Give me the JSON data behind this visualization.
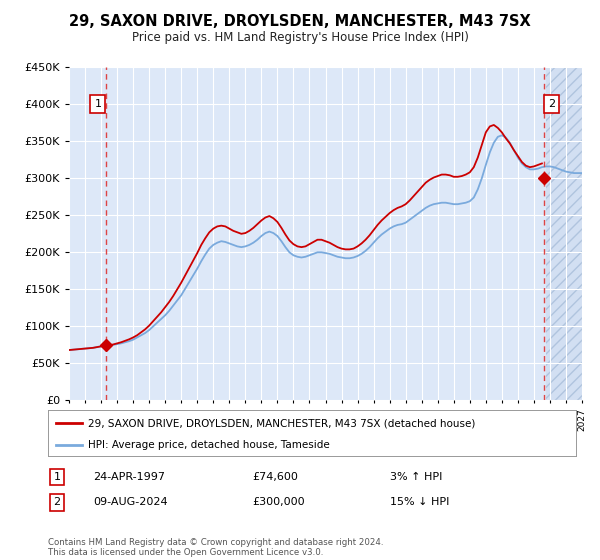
{
  "title": "29, SAXON DRIVE, DROYLSDEN, MANCHESTER, M43 7SX",
  "subtitle": "Price paid vs. HM Land Registry's House Price Index (HPI)",
  "legend_line1": "29, SAXON DRIVE, DROYLSDEN, MANCHESTER, M43 7SX (detached house)",
  "legend_line2": "HPI: Average price, detached house, Tameside",
  "annotation1_date": "24-APR-1997",
  "annotation1_price": "£74,600",
  "annotation1_hpi": "3% ↑ HPI",
  "annotation2_date": "09-AUG-2024",
  "annotation2_price": "£300,000",
  "annotation2_hpi": "15% ↓ HPI",
  "footer": "Contains HM Land Registry data © Crown copyright and database right 2024.\nThis data is licensed under the Open Government Licence v3.0.",
  "background_color": "#dde8f8",
  "hatch_color": "#c8d8ee",
  "sale_color": "#cc0000",
  "hpi_color": "#7aaadd",
  "vline_color": "#dd4444",
  "sale1_x": 1997.3,
  "sale1_y": 74600,
  "sale2_x": 2024.6,
  "sale2_y": 300000,
  "xlim": [
    1995,
    2027
  ],
  "ylim": [
    0,
    450000
  ],
  "yticks": [
    0,
    50000,
    100000,
    150000,
    200000,
    250000,
    300000,
    350000,
    400000,
    450000
  ],
  "hpi_x": [
    1995.0,
    1995.25,
    1995.5,
    1995.75,
    1996.0,
    1996.25,
    1996.5,
    1996.75,
    1997.0,
    1997.25,
    1997.5,
    1997.75,
    1998.0,
    1998.25,
    1998.5,
    1998.75,
    1999.0,
    1999.25,
    1999.5,
    1999.75,
    2000.0,
    2000.25,
    2000.5,
    2000.75,
    2001.0,
    2001.25,
    2001.5,
    2001.75,
    2002.0,
    2002.25,
    2002.5,
    2002.75,
    2003.0,
    2003.25,
    2003.5,
    2003.75,
    2004.0,
    2004.25,
    2004.5,
    2004.75,
    2005.0,
    2005.25,
    2005.5,
    2005.75,
    2006.0,
    2006.25,
    2006.5,
    2006.75,
    2007.0,
    2007.25,
    2007.5,
    2007.75,
    2008.0,
    2008.25,
    2008.5,
    2008.75,
    2009.0,
    2009.25,
    2009.5,
    2009.75,
    2010.0,
    2010.25,
    2010.5,
    2010.75,
    2011.0,
    2011.25,
    2011.5,
    2011.75,
    2012.0,
    2012.25,
    2012.5,
    2012.75,
    2013.0,
    2013.25,
    2013.5,
    2013.75,
    2014.0,
    2014.25,
    2014.5,
    2014.75,
    2015.0,
    2015.25,
    2015.5,
    2015.75,
    2016.0,
    2016.25,
    2016.5,
    2016.75,
    2017.0,
    2017.25,
    2017.5,
    2017.75,
    2018.0,
    2018.25,
    2018.5,
    2018.75,
    2019.0,
    2019.25,
    2019.5,
    2019.75,
    2020.0,
    2020.25,
    2020.5,
    2020.75,
    2021.0,
    2021.25,
    2021.5,
    2021.75,
    2022.0,
    2022.25,
    2022.5,
    2022.75,
    2023.0,
    2023.25,
    2023.5,
    2023.75,
    2024.0,
    2024.25,
    2024.5,
    2024.75,
    2025.0,
    2025.25,
    2025.5,
    2025.75,
    2026.0,
    2026.25,
    2026.5,
    2026.75,
    2027.0
  ],
  "hpi_y": [
    68000,
    68500,
    69000,
    69500,
    70000,
    70500,
    71000,
    72000,
    73000,
    73500,
    74000,
    75000,
    76000,
    77000,
    78500,
    80000,
    82000,
    85000,
    88000,
    91000,
    95000,
    100000,
    105000,
    110000,
    115000,
    121000,
    128000,
    135000,
    142000,
    151000,
    160000,
    169000,
    178000,
    188000,
    197000,
    205000,
    210000,
    213000,
    215000,
    214000,
    212000,
    210000,
    208000,
    207000,
    208000,
    210000,
    213000,
    217000,
    222000,
    226000,
    228000,
    226000,
    222000,
    215000,
    207000,
    200000,
    196000,
    194000,
    193000,
    194000,
    196000,
    198000,
    200000,
    200000,
    199000,
    198000,
    196000,
    194000,
    193000,
    192000,
    192000,
    193000,
    195000,
    198000,
    202000,
    207000,
    213000,
    219000,
    224000,
    228000,
    232000,
    235000,
    237000,
    238000,
    240000,
    244000,
    248000,
    252000,
    256000,
    260000,
    263000,
    265000,
    266000,
    267000,
    267000,
    266000,
    265000,
    265000,
    266000,
    267000,
    269000,
    274000,
    285000,
    300000,
    318000,
    335000,
    348000,
    356000,
    358000,
    355000,
    348000,
    338000,
    328000,
    320000,
    315000,
    312000,
    312000,
    313000,
    315000,
    316000,
    316000,
    315000,
    313000,
    311000,
    309000,
    308000,
    307000,
    307000,
    307000
  ],
  "sale_y": [
    68000,
    68500,
    69000,
    69500,
    70000,
    70500,
    71000,
    72000,
    73000,
    73500,
    74600,
    75500,
    77000,
    78500,
    80500,
    82500,
    85000,
    88000,
    92000,
    96000,
    101000,
    107000,
    113000,
    119000,
    126000,
    133000,
    141000,
    150000,
    159000,
    169000,
    179000,
    189000,
    199000,
    210000,
    219000,
    227000,
    232000,
    235000,
    236000,
    235000,
    232000,
    229000,
    227000,
    225000,
    226000,
    229000,
    233000,
    238000,
    243000,
    247000,
    249000,
    246000,
    241000,
    233000,
    224000,
    216000,
    211000,
    208000,
    207000,
    208000,
    211000,
    214000,
    217000,
    217000,
    215000,
    213000,
    210000,
    207000,
    205000,
    204000,
    204000,
    205000,
    208000,
    212000,
    217000,
    223000,
    230000,
    237000,
    243000,
    248000,
    253000,
    257000,
    260000,
    262000,
    265000,
    270000,
    276000,
    282000,
    288000,
    294000,
    298000,
    301000,
    303000,
    305000,
    305000,
    304000,
    302000,
    302000,
    303000,
    305000,
    308000,
    315000,
    328000,
    345000,
    362000,
    370000,
    372000,
    368000,
    362000,
    354000,
    347000,
    338000,
    330000,
    322000,
    317000,
    315000,
    316000,
    318000,
    320000,
    300000,
    300000,
    300000,
    300000,
    300000,
    300000,
    300000,
    300000,
    300000,
    300000
  ]
}
